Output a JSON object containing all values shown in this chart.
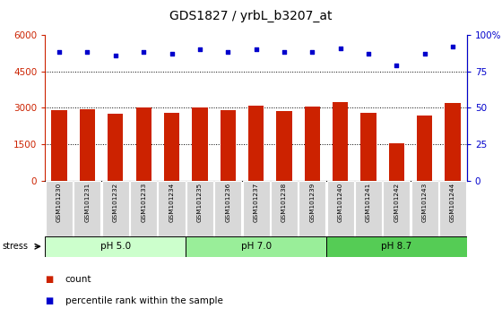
{
  "title": "GDS1827 / yrbL_b3207_at",
  "samples": [
    "GSM101230",
    "GSM101231",
    "GSM101232",
    "GSM101233",
    "GSM101234",
    "GSM101235",
    "GSM101236",
    "GSM101237",
    "GSM101238",
    "GSM101239",
    "GSM101240",
    "GSM101241",
    "GSM101242",
    "GSM101243",
    "GSM101244"
  ],
  "counts": [
    2900,
    2950,
    2750,
    3000,
    2800,
    3000,
    2900,
    3100,
    2850,
    3050,
    3250,
    2800,
    1550,
    2700,
    3200
  ],
  "percentiles": [
    88,
    88,
    86,
    88,
    87,
    90,
    88,
    90,
    88,
    88,
    91,
    87,
    79,
    87,
    92
  ],
  "bar_color": "#cc2200",
  "dot_color": "#0000cc",
  "left_ylim": [
    0,
    6000
  ],
  "left_yticks": [
    0,
    1500,
    3000,
    4500,
    6000
  ],
  "left_yticklabels": [
    "0",
    "1500",
    "3000",
    "4500",
    "6000"
  ],
  "right_ylim": [
    0,
    100
  ],
  "right_yticks": [
    0,
    25,
    50,
    75,
    100
  ],
  "right_yticklabels": [
    "0",
    "25",
    "50",
    "75",
    "100%"
  ],
  "groups": [
    {
      "label": "pH 5.0",
      "start": 0,
      "end": 5,
      "color": "#ccffcc"
    },
    {
      "label": "pH 7.0",
      "start": 5,
      "end": 10,
      "color": "#99ee99"
    },
    {
      "label": "pH 8.7",
      "start": 10,
      "end": 15,
      "color": "#55cc55"
    }
  ],
  "stress_label": "stress",
  "bar_width": 0.55,
  "label_box_color": "#d8d8d8",
  "fig_width": 5.6,
  "fig_height": 3.54,
  "dpi": 100
}
